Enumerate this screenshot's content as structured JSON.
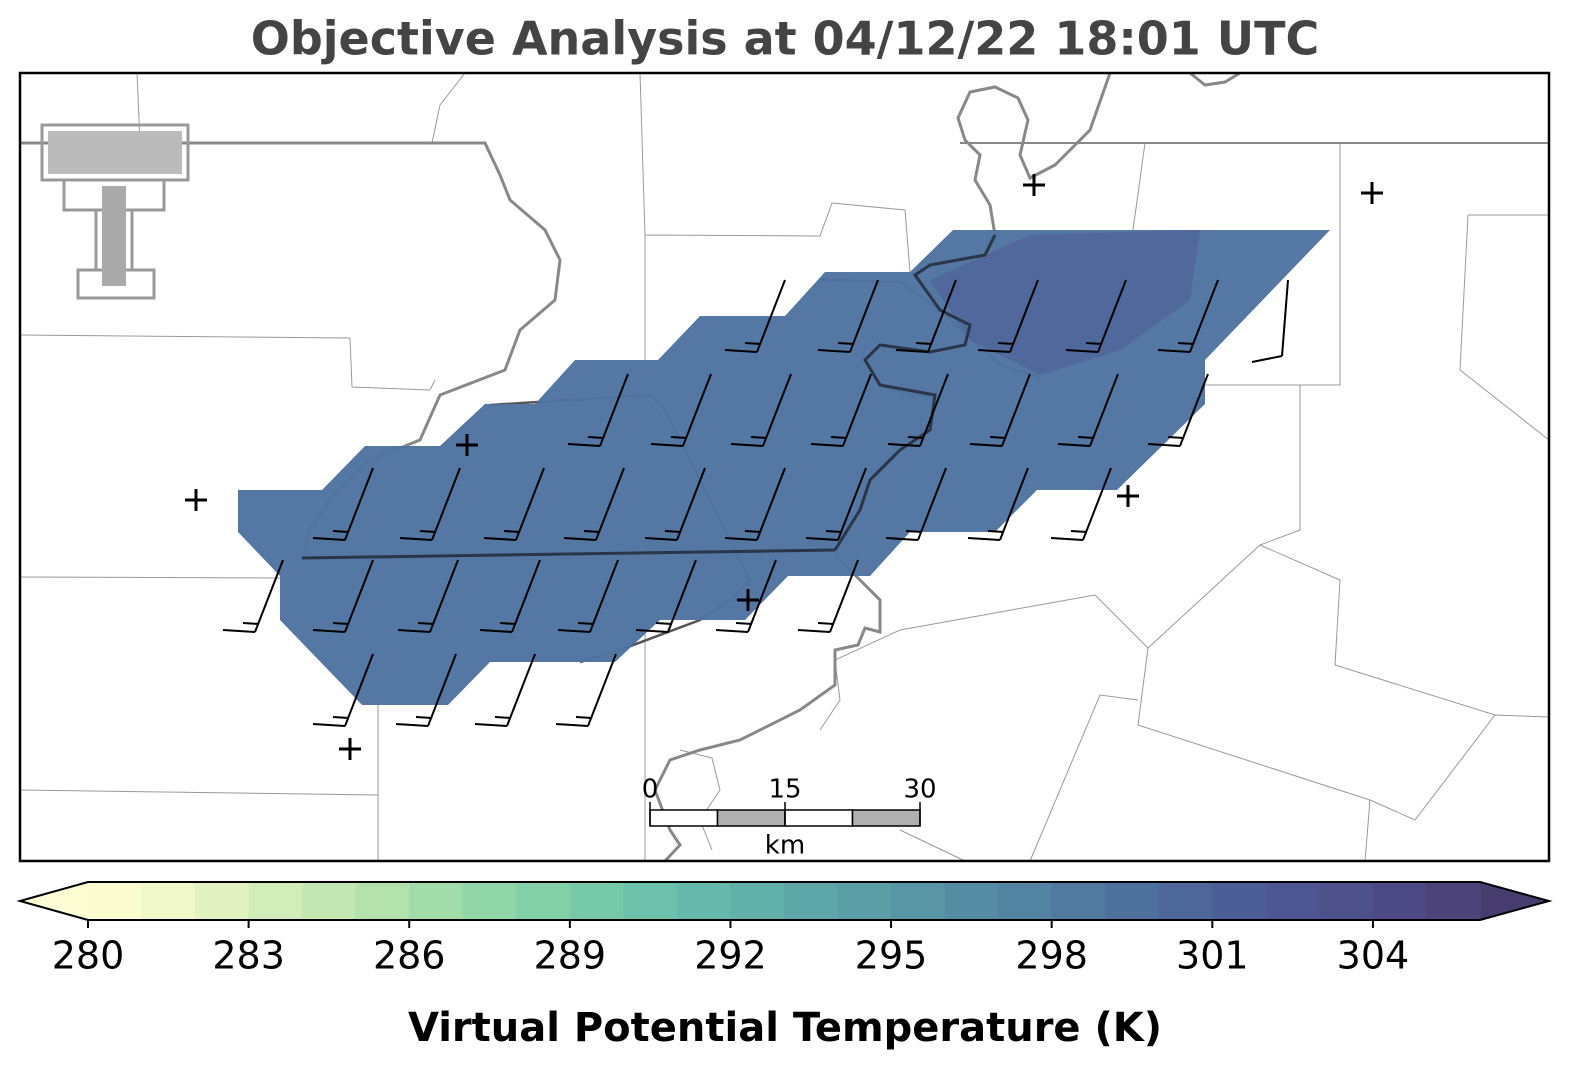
{
  "title": "Objective Analysis at 04/12/22 18:01 UTC",
  "colorbar": {
    "label": "Virtual Potential Temperature (K)",
    "lim": [
      280,
      306
    ],
    "ticks": [
      280,
      283,
      286,
      289,
      292,
      295,
      298,
      301,
      304
    ],
    "colors": [
      "#fbfbd0",
      "#f0f7c8",
      "#e2f2c0",
      "#d3edba",
      "#c3e7b2",
      "#b3e2ac",
      "#a2dcaa",
      "#91d6a9",
      "#81d0a8",
      "#76c9a9",
      "#6dc1aa",
      "#66b9aa",
      "#61b0a9",
      "#5ea7a8",
      "#5b9ea7",
      "#5895a5",
      "#558ca4",
      "#5283a2",
      "#507a9f",
      "#4e709c",
      "#4d6799",
      "#4c5e96",
      "#4e5794",
      "#4e508c",
      "#4d4984",
      "#4b437a"
    ],
    "under_color": "#fdfdd4",
    "over_color": "#463c6e"
  },
  "scalebar": {
    "ticks": [
      0,
      15,
      30
    ],
    "unit": "km"
  }
}
